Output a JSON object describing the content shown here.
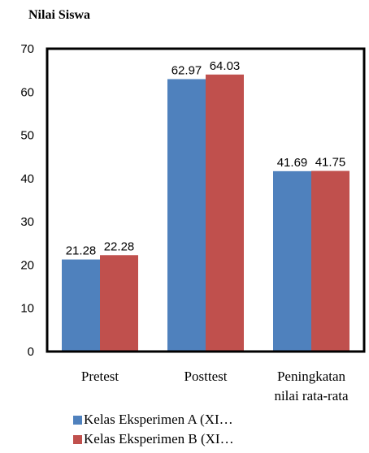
{
  "chart_data": {
    "type": "bar",
    "title": "Nilai Siswa",
    "categories": [
      "Pretest",
      "Posttest",
      [
        "Peningkatan",
        "nilai rata-rata"
      ]
    ],
    "series": [
      {
        "name": "Kelas Eksperimen A (XI…",
        "values": [
          21.28,
          62.97,
          41.69
        ],
        "labels": [
          "21.28",
          "62.97",
          "41.69"
        ],
        "color": "#4f81bd"
      },
      {
        "name": "Kelas Eksperimen B (XI…",
        "values": [
          22.28,
          64.03,
          41.75
        ],
        "labels": [
          "22.28",
          "64.03",
          "41.75"
        ],
        "color": "#c0504d"
      }
    ],
    "ylim": [
      0,
      70
    ],
    "yticks": [
      0,
      10,
      20,
      30,
      40,
      50,
      60,
      70
    ],
    "grid": false,
    "legend": "bottom"
  }
}
